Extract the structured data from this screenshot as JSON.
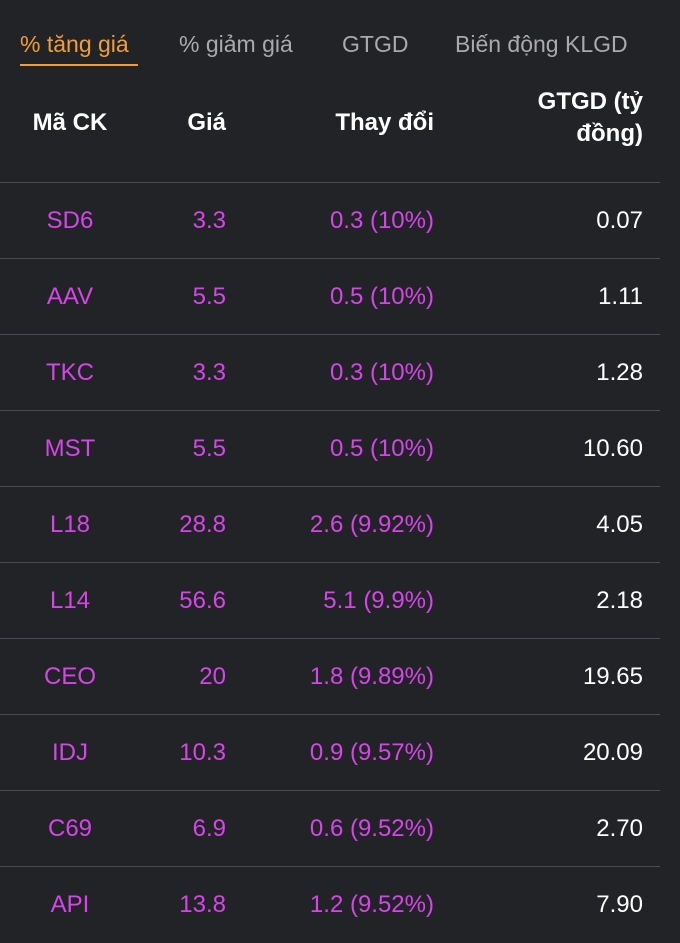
{
  "tabs": [
    {
      "label": "% tăng giá",
      "active": true
    },
    {
      "label": "% giảm giá",
      "active": false
    },
    {
      "label": "GTGD",
      "active": false
    },
    {
      "label": "Biến động KLGD",
      "active": false
    }
  ],
  "columns": {
    "code": "Mã CK",
    "price": "Giá",
    "change": "Thay đổi",
    "value_line1": "GTGD (tỷ",
    "value_line2": "đồng)"
  },
  "colors": {
    "background": "#222327",
    "accent": "#f29e38",
    "increase": "#d645e8",
    "text": "#ffffff",
    "muted": "#a9a9ae"
  },
  "rows": [
    {
      "code": "SD6",
      "price": "3.3",
      "change": "0.3 (10%)",
      "value": "0.07"
    },
    {
      "code": "AAV",
      "price": "5.5",
      "change": "0.5 (10%)",
      "value": "1.11"
    },
    {
      "code": "TKC",
      "price": "3.3",
      "change": "0.3 (10%)",
      "value": "1.28"
    },
    {
      "code": "MST",
      "price": "5.5",
      "change": "0.5 (10%)",
      "value": "10.60"
    },
    {
      "code": "L18",
      "price": "28.8",
      "change": "2.6 (9.92%)",
      "value": "4.05"
    },
    {
      "code": "L14",
      "price": "56.6",
      "change": "5.1 (9.9%)",
      "value": "2.18"
    },
    {
      "code": "CEO",
      "price": "20",
      "change": "1.8 (9.89%)",
      "value": "19.65"
    },
    {
      "code": "IDJ",
      "price": "10.3",
      "change": "0.9 (9.57%)",
      "value": "20.09"
    },
    {
      "code": "C69",
      "price": "6.9",
      "change": "0.6 (9.52%)",
      "value": "2.70"
    },
    {
      "code": "API",
      "price": "13.8",
      "change": "1.2 (9.52%)",
      "value": "7.90"
    }
  ]
}
